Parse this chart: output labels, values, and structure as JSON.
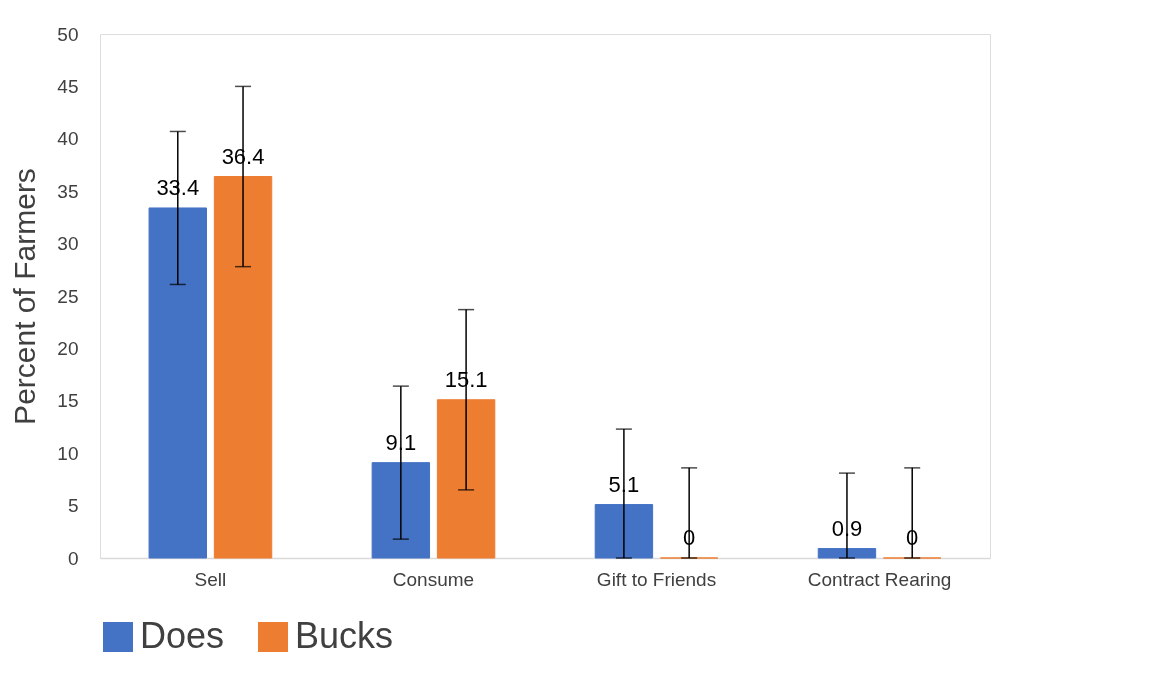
{
  "chart_data": {
    "type": "bar",
    "ylabel": "Percent of Farmers",
    "categories": [
      "Sell",
      "Consume",
      "Gift to Friends",
      "Contract Rearing"
    ],
    "series": [
      {
        "name": "Does",
        "color": "#4472c4",
        "values": [
          33.4,
          9.1,
          5.1,
          0.9
        ],
        "errors": [
          7.3,
          7.3,
          [
            0,
            12.3
          ],
          [
            0,
            8.1
          ]
        ]
      },
      {
        "name": "Bucks",
        "color": "#ed7d31",
        "values": [
          36.4,
          15.1,
          0,
          0
        ],
        "errors": [
          8.6,
          8.6,
          [
            0,
            8.6
          ],
          [
            0,
            8.6
          ]
        ]
      }
    ],
    "ylim": [
      0,
      50
    ],
    "yticks": [
      0,
      5,
      10,
      15,
      20,
      25,
      30,
      35,
      40,
      45,
      50
    ],
    "grid": false,
    "legend": "bottom",
    "data_labels": true
  }
}
